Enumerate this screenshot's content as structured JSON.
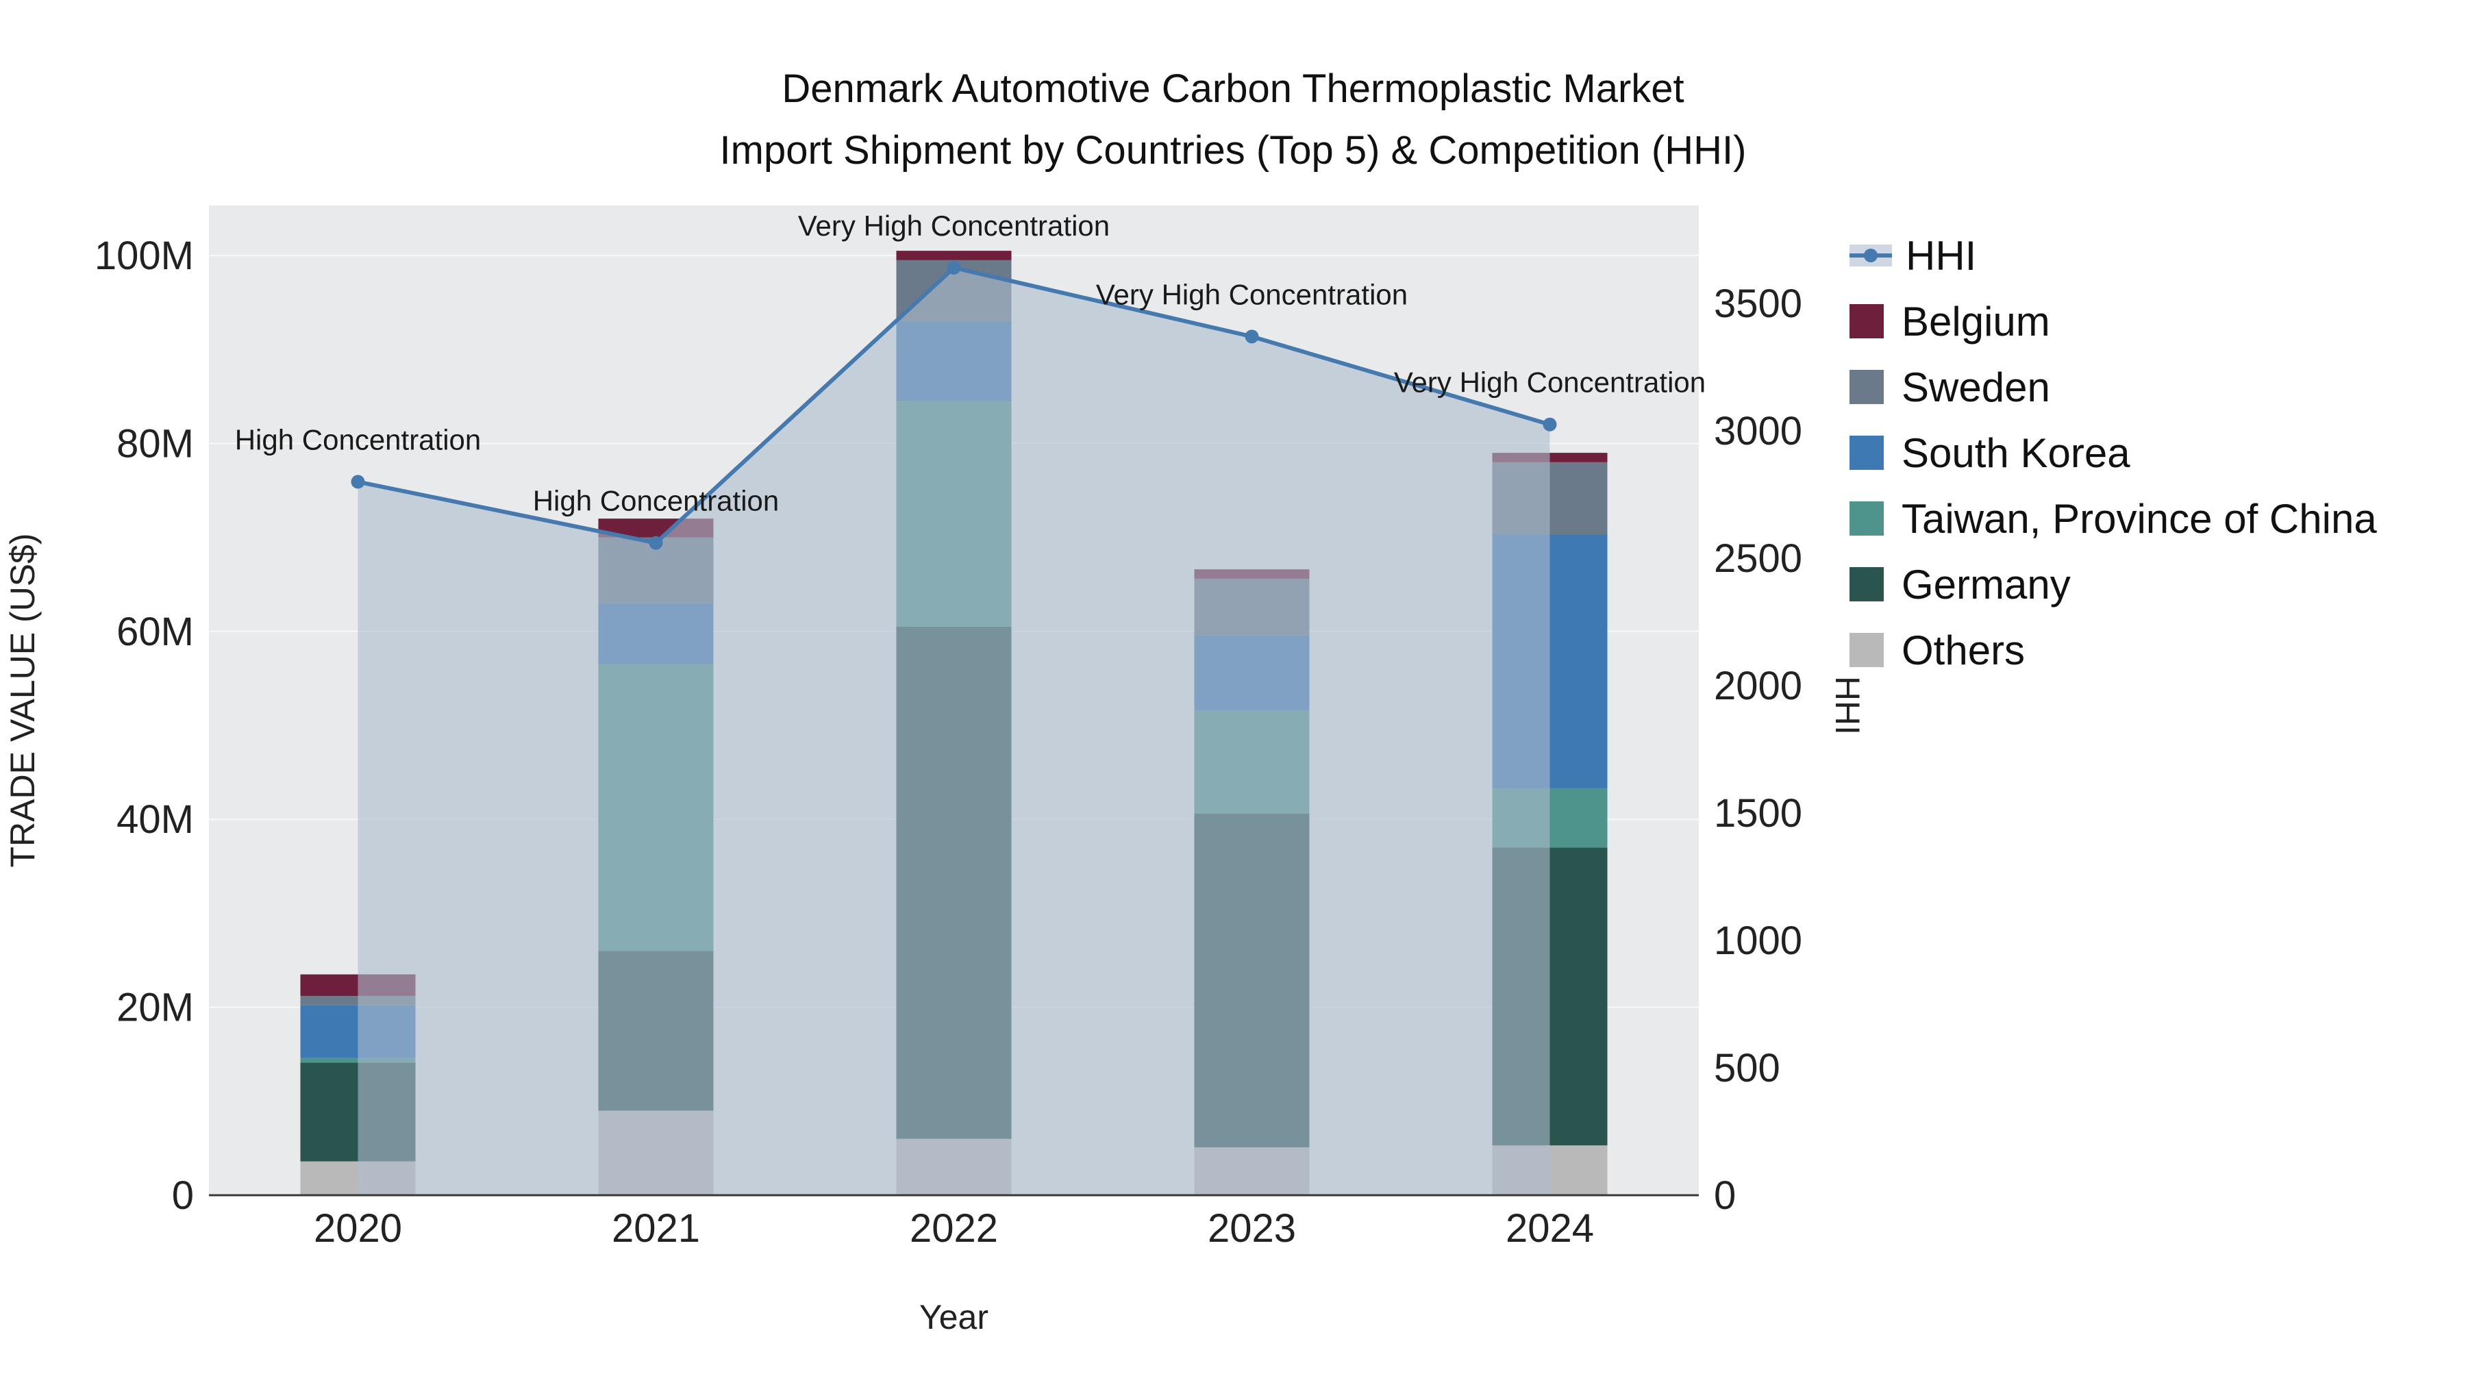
{
  "title": {
    "line1": "Denmark Automotive Carbon Thermoplastic Market",
    "line2": "Import Shipment by Countries (Top 5) & Competition (HHI)"
  },
  "axes": {
    "x_title": "Year",
    "y_left_title": "TRADE VALUE (US$)",
    "y_right_title": "HHI",
    "y_left_tick_labels": [
      "0",
      "20M",
      "40M",
      "60M",
      "80M",
      "100M"
    ],
    "y_left_tick_values": [
      0,
      20,
      40,
      60,
      80,
      100
    ],
    "y_right_tick_labels": [
      "0",
      "500",
      "1000",
      "1500",
      "2000",
      "2500",
      "3000",
      "3500"
    ],
    "y_right_tick_values": [
      0,
      500,
      1000,
      1500,
      2000,
      2500,
      3000,
      3500
    ]
  },
  "chart_data": {
    "type": "bar",
    "stacked": true,
    "categories": [
      "2020",
      "2021",
      "2022",
      "2023",
      "2024"
    ],
    "value_unit": "million US$",
    "y_left_range": [
      0,
      105.3
    ],
    "y_right_range": [
      0,
      3884
    ],
    "grid": true,
    "plot_bg": "#e8eaec",
    "grid_color": "#f7f8f9",
    "zero_line_color": "#3a3a3a",
    "series": [
      {
        "name": "Others",
        "color": "#b9b9b9",
        "values": [
          3.6,
          9.0,
          6.0,
          5.1,
          5.3
        ]
      },
      {
        "name": "Germany",
        "color": "#2a544e",
        "values": [
          10.5,
          17.0,
          54.5,
          35.5,
          31.7
        ]
      },
      {
        "name": "Taiwan, Province of China",
        "color": "#4f938d",
        "values": [
          0.5,
          30.5,
          24.0,
          11.0,
          6.3
        ]
      },
      {
        "name": "South Korea",
        "color": "#3e79b4",
        "values": [
          5.6,
          6.5,
          8.5,
          8.0,
          27.0
        ]
      },
      {
        "name": "Sweden",
        "color": "#6b7a8b",
        "values": [
          1.0,
          7.0,
          6.5,
          6.0,
          7.7
        ]
      },
      {
        "name": "Belgium",
        "color": "#6e1f3b",
        "values": [
          2.3,
          2.0,
          1.0,
          1.0,
          1.0
        ]
      }
    ],
    "line_series": {
      "name": "HHI",
      "axis": "right",
      "color": "#4679ad",
      "fill_color": "rgba(173,188,206,0.60)",
      "values": [
        2800,
        2560,
        3640,
        3370,
        3025
      ]
    },
    "annotations": [
      {
        "category": "2020",
        "text": "High Concentration"
      },
      {
        "category": "2021",
        "text": "High Concentration"
      },
      {
        "category": "2022",
        "text": "Very High Concentration"
      },
      {
        "category": "2023",
        "text": "Very High Concentration"
      },
      {
        "category": "2024",
        "text": "Very High Concentration"
      }
    ]
  },
  "legend": {
    "items": [
      {
        "label": "HHI",
        "type": "line",
        "color": "#4679ad",
        "band": "rgba(173,188,206,0.60)"
      },
      {
        "label": "Belgium",
        "type": "square",
        "color": "#6e1f3b"
      },
      {
        "label": "Sweden",
        "type": "square",
        "color": "#6b7a8b"
      },
      {
        "label": "South Korea",
        "type": "square",
        "color": "#3e79b4"
      },
      {
        "label": "Taiwan, Province of China",
        "type": "square",
        "color": "#4f938d"
      },
      {
        "label": "Germany",
        "type": "square",
        "color": "#2a544e"
      },
      {
        "label": "Others",
        "type": "square",
        "color": "#b9b9b9"
      }
    ]
  }
}
